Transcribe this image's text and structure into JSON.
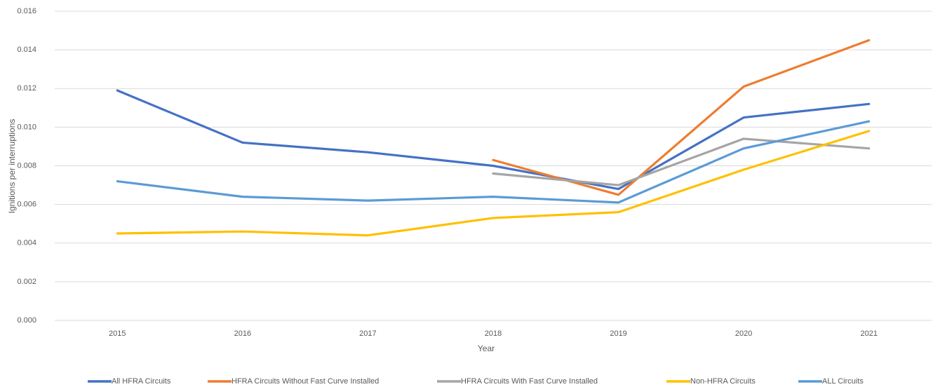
{
  "chart_data": {
    "type": "line",
    "xlabel": "Year",
    "ylabel": "Ignitions per interruptions",
    "categories": [
      "2015",
      "2016",
      "2017",
      "2018",
      "2019",
      "2020",
      "2021"
    ],
    "series": [
      {
        "name": "All HFRA Circuits",
        "color": "#4472c4",
        "values": [
          0.0119,
          0.0092,
          0.0087,
          0.008,
          0.0068,
          0.0105,
          0.0112
        ]
      },
      {
        "name": "HFRA Circuits Without Fast Curve Installed",
        "color": "#ed7d31",
        "values": [
          null,
          null,
          null,
          0.0083,
          0.0065,
          0.0121,
          0.0145
        ]
      },
      {
        "name": "HFRA Circuits With Fast Curve Installed",
        "color": "#a5a5a5",
        "values": [
          null,
          null,
          null,
          0.0076,
          0.007,
          0.0094,
          0.0089
        ]
      },
      {
        "name": "Non-HFRA Circuits",
        "color": "#ffc000",
        "values": [
          0.0045,
          0.0046,
          0.0044,
          0.0053,
          0.0056,
          0.0078,
          0.0098
        ]
      },
      {
        "name": "ALL Circuits",
        "color": "#5b9bd5",
        "values": [
          0.0072,
          0.0064,
          0.0062,
          0.0064,
          0.0061,
          0.0089,
          0.0103
        ]
      }
    ],
    "ylim": [
      0,
      0.016
    ],
    "yticks": [
      {
        "value": 0,
        "label": "0.000"
      },
      {
        "value": 0.002,
        "label": "0.002"
      },
      {
        "value": 0.004,
        "label": "0.004"
      },
      {
        "value": 0.006,
        "label": "0.006"
      },
      {
        "value": 0.008,
        "label": "0.008"
      },
      {
        "value": 0.01,
        "label": "0.010"
      },
      {
        "value": 0.012,
        "label": "0.012"
      },
      {
        "value": 0.014,
        "label": "0.014"
      },
      {
        "value": 0.016,
        "label": "0.016"
      }
    ],
    "grid": true,
    "legend": "bottom"
  }
}
